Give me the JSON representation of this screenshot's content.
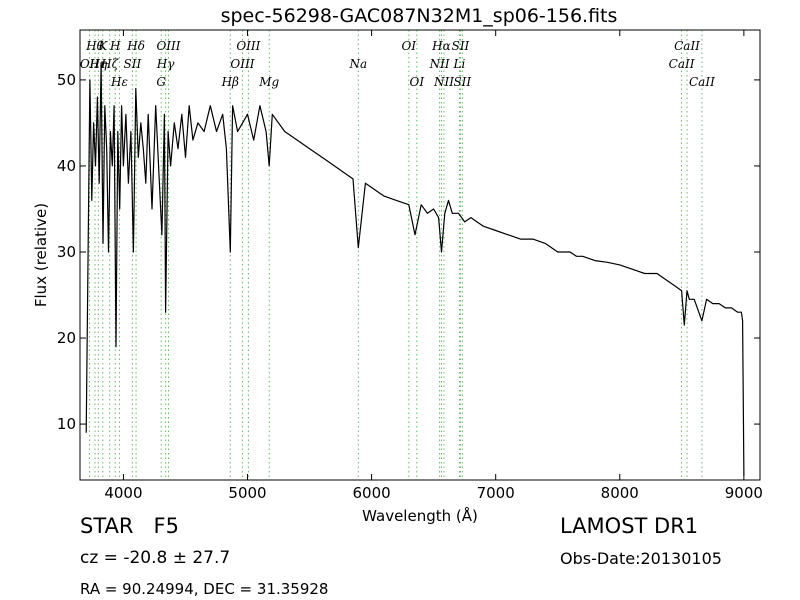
{
  "chart_data": {
    "type": "line",
    "title": "spec-56298-GAC087N32M1_sp06-156.fits",
    "xlabel": "Wavelength (Å)",
    "ylabel": "Flux (relative)",
    "xlim": [
      3650,
      9130
    ],
    "ylim": [
      3.5,
      55.8
    ],
    "xticks": [
      4000,
      5000,
      6000,
      7000,
      8000,
      9000
    ],
    "yticks": [
      10,
      20,
      30,
      40,
      50
    ],
    "grid": false,
    "series": [
      {
        "x": [
          3700,
          3715,
          3730,
          3745,
          3760,
          3775,
          3790,
          3805,
          3820,
          3835,
          3850,
          3865,
          3880,
          3895,
          3910,
          3925,
          3940,
          3955,
          3970,
          3985,
          4000,
          4020,
          4040,
          4060,
          4080,
          4100,
          4120,
          4140,
          4160,
          4180,
          4200,
          4230,
          4260,
          4290,
          4310,
          4330,
          4340,
          4360,
          4380,
          4410,
          4440,
          4470,
          4500,
          4530,
          4560,
          4600,
          4650,
          4700,
          4750,
          4800,
          4830,
          4861,
          4880,
          4920,
          4960,
          5000,
          5050,
          5100,
          5150,
          5175,
          5200,
          5300,
          5400,
          5500,
          5600,
          5700,
          5800,
          5850,
          5893,
          5950,
          6000,
          6100,
          6200,
          6300,
          6350,
          6400,
          6450,
          6500,
          6540,
          6563,
          6590,
          6620,
          6650,
          6700,
          6750,
          6800,
          6900,
          7000,
          7100,
          7200,
          7300,
          7400,
          7500,
          7600,
          7650,
          7700,
          7800,
          7900,
          8000,
          8100,
          8200,
          8300,
          8400,
          8450,
          8498,
          8520,
          8542,
          8560,
          8600,
          8662,
          8700,
          8750,
          8800,
          8850,
          8900,
          8950,
          8980,
          8990,
          9000
        ],
        "y": [
          9,
          30,
          50,
          36,
          45,
          40,
          48,
          38,
          52,
          31,
          47,
          42,
          30,
          44,
          40,
          47,
          19,
          44,
          35,
          47,
          40,
          46,
          38,
          44,
          30,
          49,
          41,
          45,
          42,
          38,
          46,
          35,
          47,
          38,
          32,
          46,
          23,
          44,
          40,
          45,
          42,
          46,
          41,
          47,
          43,
          45,
          44,
          47,
          44,
          46,
          42,
          30,
          47,
          44,
          45,
          46,
          43,
          47,
          44,
          40,
          46,
          44,
          43,
          42,
          41,
          40,
          39,
          38.5,
          30.5,
          38,
          37.5,
          36.5,
          36,
          35.5,
          32,
          35.5,
          34.5,
          35,
          34,
          30,
          34.5,
          36,
          34.5,
          34.5,
          33.5,
          34,
          33,
          32.5,
          32,
          31.5,
          31.5,
          31,
          30,
          30,
          29.5,
          29.5,
          29,
          28.8,
          28.5,
          28,
          27.5,
          27.5,
          26.5,
          26,
          25.5,
          21.5,
          25.5,
          24.5,
          24.5,
          22,
          24.5,
          24,
          24,
          23.5,
          23.5,
          23,
          23,
          22,
          4
        ]
      }
    ],
    "lines": [
      {
        "name": "OII",
        "x": 3727,
        "row": 1
      },
      {
        "name": "Hθ",
        "x": 3771,
        "row": 0
      },
      {
        "name": "Hη",
        "x": 3798,
        "row": 1
      },
      {
        "name": "K",
        "x": 3834,
        "row": 0
      },
      {
        "name": "Hζ",
        "x": 3889,
        "row": 1
      },
      {
        "name": "H",
        "x": 3934,
        "row": 0
      },
      {
        "name": "Hε",
        "x": 3968,
        "row": 2
      },
      {
        "name": "SII",
        "x": 4072,
        "row": 1
      },
      {
        "name": "Hδ",
        "x": 4102,
        "row": 0
      },
      {
        "name": "OIII",
        "x": 4363,
        "row": 0
      },
      {
        "name": "Hγ",
        "x": 4340,
        "row": 1
      },
      {
        "name": "G",
        "x": 4304,
        "row": 2
      },
      {
        "name": "Hβ",
        "x": 4861,
        "row": 2
      },
      {
        "name": "OIII",
        "x": 4959,
        "row": 1
      },
      {
        "name": "OIII",
        "x": 5007,
        "row": 0
      },
      {
        "name": "Mg",
        "x": 5175,
        "row": 2
      },
      {
        "name": "Na",
        "x": 5893,
        "row": 1
      },
      {
        "name": "OI",
        "x": 6300,
        "row": 0
      },
      {
        "name": "OI",
        "x": 6364,
        "row": 2
      },
      {
        "name": "NII",
        "x": 6548,
        "row": 1
      },
      {
        "name": "Hα",
        "x": 6563,
        "row": 0
      },
      {
        "name": "NII",
        "x": 6583,
        "row": 2
      },
      {
        "name": "SII",
        "x": 6716,
        "row": 0
      },
      {
        "name": "Li",
        "x": 6708,
        "row": 1
      },
      {
        "name": "SII",
        "x": 6731,
        "row": 2
      },
      {
        "name": "CaII",
        "x": 8498,
        "row": 1
      },
      {
        "name": "CaII",
        "x": 8542,
        "row": 0
      },
      {
        "name": "CaII",
        "x": 8662,
        "row": 2
      }
    ]
  },
  "info": {
    "class_label": "STAR",
    "subclass": "F5",
    "survey": "LAMOST DR1",
    "cz": "cz = -20.8 ± 27.7",
    "obs_date": "Obs-Date:20130105",
    "radec": "RA = 90.24994, DEC = 31.35928"
  },
  "colors": {
    "spectrum": "#000000",
    "line_markers": "#66bb66"
  }
}
